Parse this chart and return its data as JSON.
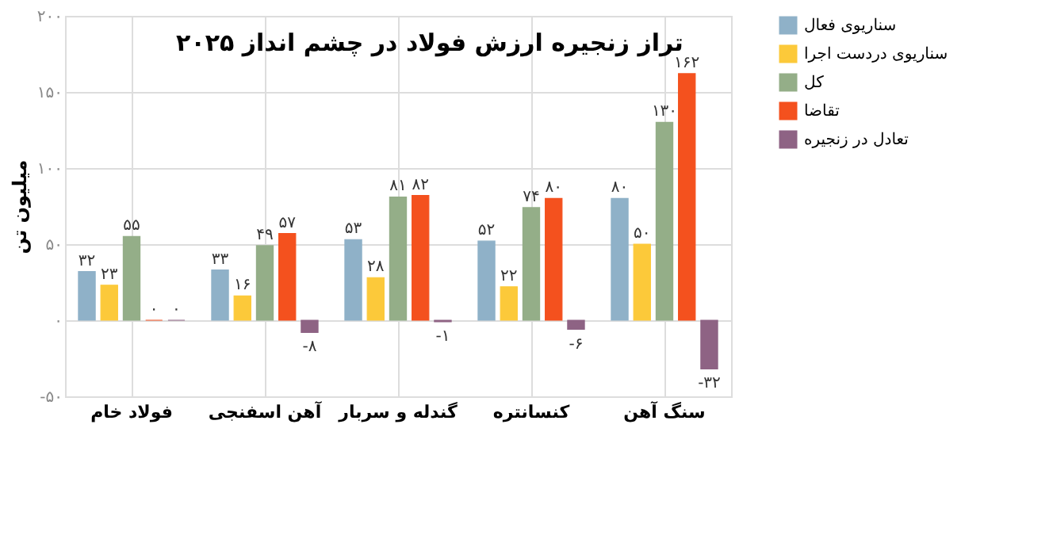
{
  "chart_data": {
    "type": "bar",
    "title": "تراز زنجیره ارزش فولاد در چشم انداز ۲۰۲۵",
    "ylabel": "میلیون تن",
    "categories": [
      "فولاد خام",
      "آهن اسفنجی",
      "گندله و سربار",
      "کنسانتره",
      "سنگ آهن"
    ],
    "series": [
      {
        "name": "سناریوی فعال",
        "color": "#8fb1c8",
        "values": [
          32,
          33,
          53,
          52,
          80
        ],
        "value_labels": [
          "۳۲",
          "۳۳",
          "۵۳",
          "۵۲",
          "۸۰"
        ]
      },
      {
        "name": "سناریوی دردست اجرا",
        "color": "#fcc93a",
        "values": [
          23,
          16,
          28,
          22,
          50
        ],
        "value_labels": [
          "۲۳",
          "۱۶",
          "۲۸",
          "۲۲",
          "۵۰"
        ]
      },
      {
        "name": "کل",
        "color": "#94ae88",
        "values": [
          55,
          49,
          81,
          74,
          130
        ],
        "value_labels": [
          "۵۵",
          "۴۹",
          "۸۱",
          "۷۴",
          "۱۳۰"
        ]
      },
      {
        "name": "تقاضا",
        "color": "#f4511e",
        "values": [
          0,
          57,
          82,
          80,
          162
        ],
        "value_labels": [
          "۰",
          "۵۷",
          "۸۲",
          "۸۰",
          "۱۶۲"
        ]
      },
      {
        "name": "تعادل در زنجیره",
        "color": "#8e6384",
        "values": [
          0,
          -8,
          -1,
          -6,
          -32
        ],
        "value_labels": [
          "۰",
          "-۸",
          "-۱",
          "-۶",
          "-۳۲"
        ]
      }
    ],
    "ylim": [
      -50,
      200
    ],
    "yticks": [
      {
        "value": -50,
        "label": "-۵۰"
      },
      {
        "value": 0,
        "label": "۰"
      },
      {
        "value": 50,
        "label": "۵۰"
      },
      {
        "value": 100,
        "label": "۱۰۰"
      },
      {
        "value": 150,
        "label": "۱۵۰"
      },
      {
        "value": 200,
        "label": "۲۰۰"
      }
    ],
    "grid": true,
    "legend": "right"
  }
}
